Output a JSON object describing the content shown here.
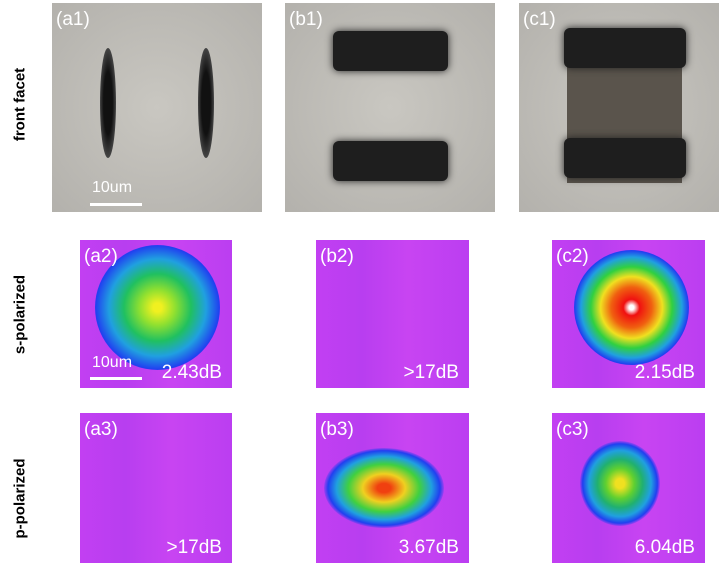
{
  "row_labels": [
    "front facet",
    "s-polarized",
    "p-polarized"
  ],
  "panels": [
    [
      {
        "label": "(a1)",
        "scale_bar": "10um"
      },
      {
        "label": "(b1)"
      },
      {
        "label": "(c1)"
      }
    ],
    [
      {
        "label": "(a2)",
        "extinction": "2.43dB",
        "scale_bar": "10um"
      },
      {
        "label": "(b2)",
        "extinction": ">17dB"
      },
      {
        "label": "(c2)",
        "extinction": "2.15dB"
      }
    ],
    [
      {
        "label": "(a3)",
        "extinction": ">17dB"
      },
      {
        "label": "(b3)",
        "extinction": "3.67dB"
      },
      {
        "label": "(c3)",
        "extinction": "6.04dB"
      }
    ]
  ]
}
